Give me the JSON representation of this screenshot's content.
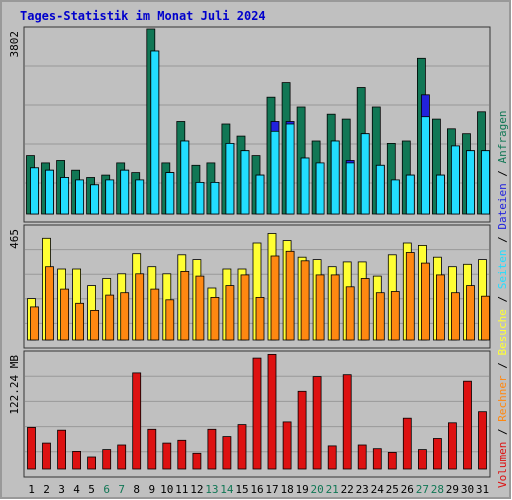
{
  "chart_data": {
    "type": "bar",
    "title": "Tages-Statistik im Monat Juli 2024",
    "categories": [
      "1",
      "2",
      "3",
      "4",
      "5",
      "6",
      "7",
      "8",
      "9",
      "10",
      "11",
      "12",
      "13",
      "14",
      "15",
      "16",
      "17",
      "18",
      "19",
      "20",
      "21",
      "22",
      "23",
      "24",
      "25",
      "26",
      "27",
      "28",
      "29",
      "30",
      "31"
    ],
    "weekend_days": [
      "6",
      "7",
      "13",
      "14",
      "20",
      "21",
      "27",
      "28"
    ],
    "grid": true,
    "colors": {
      "title": "#0000cc",
      "background": "#c0c0c0",
      "panel_border": "#333333",
      "frame": "#999999",
      "weekday_label": "#000000",
      "weekend_label": "#117755",
      "hits": "#117755",
      "files": "#2222dd",
      "pages": "#22ddff",
      "visits": "#ffff33",
      "sites": "#ff8811",
      "volume": "#dd1111"
    },
    "panels": [
      {
        "ymax_label": "3802",
        "ymax": 3802,
        "series": [
          {
            "name": "Anfragen",
            "color_key": "hits",
            "values": [
              1200,
              1050,
              1100,
              900,
              750,
              800,
              1050,
              850,
              3802,
              1050,
              1900,
              1000,
              1050,
              1850,
              1600,
              1200,
              2400,
              2700,
              2200,
              1500,
              2050,
              1950,
              2600,
              2200,
              1450,
              1500,
              3200,
              1950,
              1750,
              1650,
              2100
            ]
          },
          {
            "name": "Dateien",
            "color_key": "files",
            "values": [
              950,
              900,
              750,
              700,
              600,
              700,
              900,
              700,
              3350,
              850,
              1500,
              650,
              650,
              1450,
              1300,
              800,
              1900,
              1900,
              1150,
              1050,
              1500,
              1100,
              1650,
              1000,
              700,
              800,
              2450,
              800,
              1400,
              1300,
              1300
            ]
          },
          {
            "name": "Seiten",
            "color_key": "pages",
            "values": [
              950,
              900,
              750,
              700,
              600,
              700,
              900,
              700,
              3350,
              850,
              1500,
              650,
              650,
              1450,
              1300,
              800,
              1700,
              1850,
              1150,
              1050,
              1500,
              1050,
              1650,
              1000,
              700,
              800,
              2000,
              800,
              1400,
              1300,
              1300
            ]
          }
        ]
      },
      {
        "ymax_label": "465",
        "ymax": 465,
        "series": [
          {
            "name": "Besuche",
            "color_key": "visits",
            "values": [
              175,
              430,
              300,
              300,
              230,
              260,
              280,
              365,
              310,
              280,
              360,
              340,
              220,
              300,
              300,
              410,
              450,
              420,
              350,
              340,
              310,
              330,
              330,
              270,
              360,
              410,
              400,
              350,
              310,
              320,
              340
            ]
          },
          {
            "name": "Rechner",
            "color_key": "sites",
            "values": [
              140,
              310,
              215,
              155,
              125,
              190,
              200,
              280,
              215,
              170,
              290,
              270,
              180,
              230,
              275,
              180,
              355,
              375,
              335,
              275,
              275,
              225,
              260,
              200,
              205,
              370,
              325,
              275,
              200,
              230,
              185
            ]
          }
        ]
      },
      {
        "ymax_label": "122.24 MB",
        "ymax": 122.24,
        "series": [
          {
            "name": "Volumen",
            "color_key": "volume",
            "values": [
              45,
              28,
              42,
              19,
              13,
              21,
              26,
              104,
              43,
              28,
              31,
              17,
              43,
              35,
              48,
              120,
              124,
              51,
              84,
              100,
              25,
              102,
              26,
              22,
              18,
              55,
              21,
              33,
              50,
              95,
              62
            ]
          }
        ]
      }
    ],
    "right_legend": [
      {
        "text": "Anfragen",
        "color_key": "hits"
      },
      {
        "text": "Dateien",
        "color_key": "files"
      },
      {
        "text": "Seiten",
        "color_key": "pages"
      },
      {
        "text": "Besuche",
        "color_key": "visits"
      },
      {
        "text": "Rechner",
        "color_key": "sites"
      },
      {
        "text": "Volumen",
        "color_key": "volume"
      }
    ],
    "legend_separator": "/"
  }
}
